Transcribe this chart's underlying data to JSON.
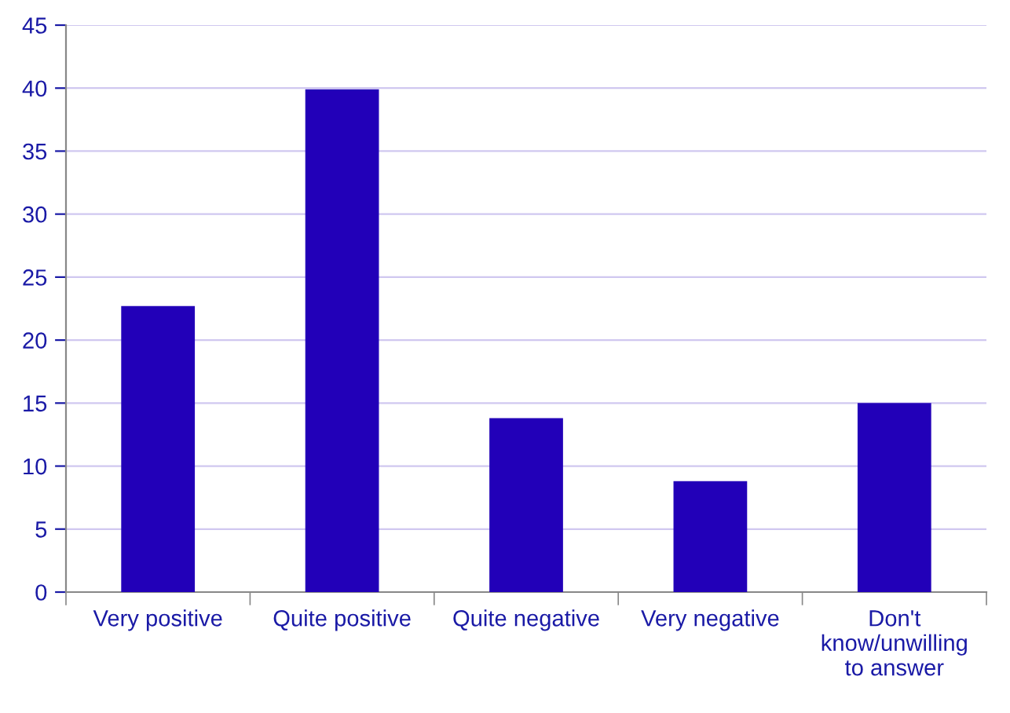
{
  "chart_data": {
    "type": "bar",
    "categories": [
      "Very positive",
      "Quite positive",
      "Quite negative",
      "Very negative",
      "Don't\nknow/unwilling\nto answer"
    ],
    "values": [
      22.7,
      39.9,
      13.8,
      8.8,
      15.0
    ],
    "color": "#2200b8",
    "ylim": [
      0,
      45
    ],
    "yticks": [
      0,
      5,
      10,
      15,
      20,
      25,
      30,
      35,
      40,
      45
    ],
    "grid": "y",
    "legend": false
  }
}
